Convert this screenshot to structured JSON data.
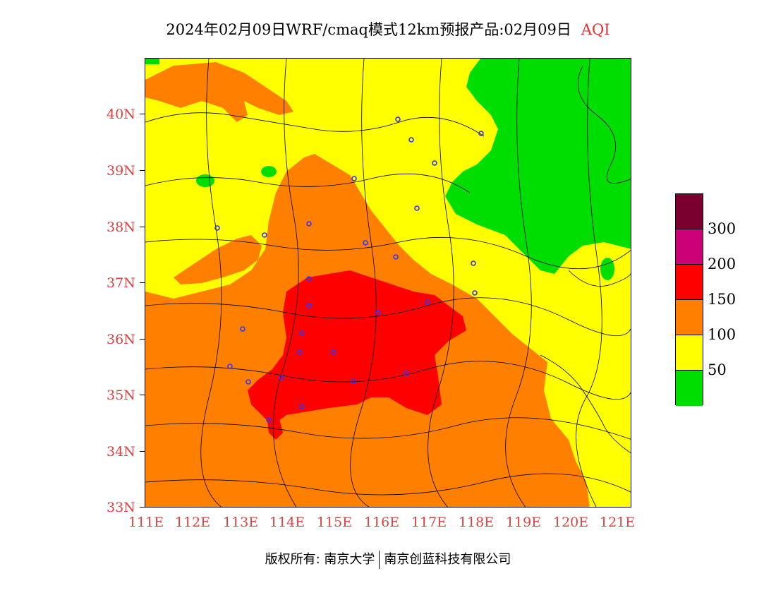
{
  "title": {
    "main": "2024年02月09日WRF/cmaq模式12km预报产品:02月09日",
    "variable": "AQI"
  },
  "axes": {
    "y_labels": [
      "40N",
      "39N",
      "38N",
      "37N",
      "36N",
      "35N",
      "34N",
      "33N"
    ],
    "x_labels": [
      "111E",
      "112E",
      "113E",
      "114E",
      "115E",
      "116E",
      "117E",
      "118E",
      "119E",
      "120E",
      "121E"
    ],
    "lon_range": [
      111,
      121.3
    ],
    "lat_range": [
      33,
      40.95
    ]
  },
  "legend": {
    "colors": [
      "#7a0030",
      "#cc0077",
      "#ff0000",
      "#ff8000",
      "#ffff00",
      "#00dd00"
    ],
    "labels": [
      "300",
      "200",
      "150",
      "100",
      "50"
    ]
  },
  "footer": {
    "left": "版权所有: 南京大学",
    "right": "南京创蓝科技有限公司"
  },
  "colors": {
    "good": "#00dd00",
    "moderate": "#ffff00",
    "sensitive": "#ff8000",
    "unhealthy": "#ff0000",
    "axis_label": "#e04040"
  }
}
